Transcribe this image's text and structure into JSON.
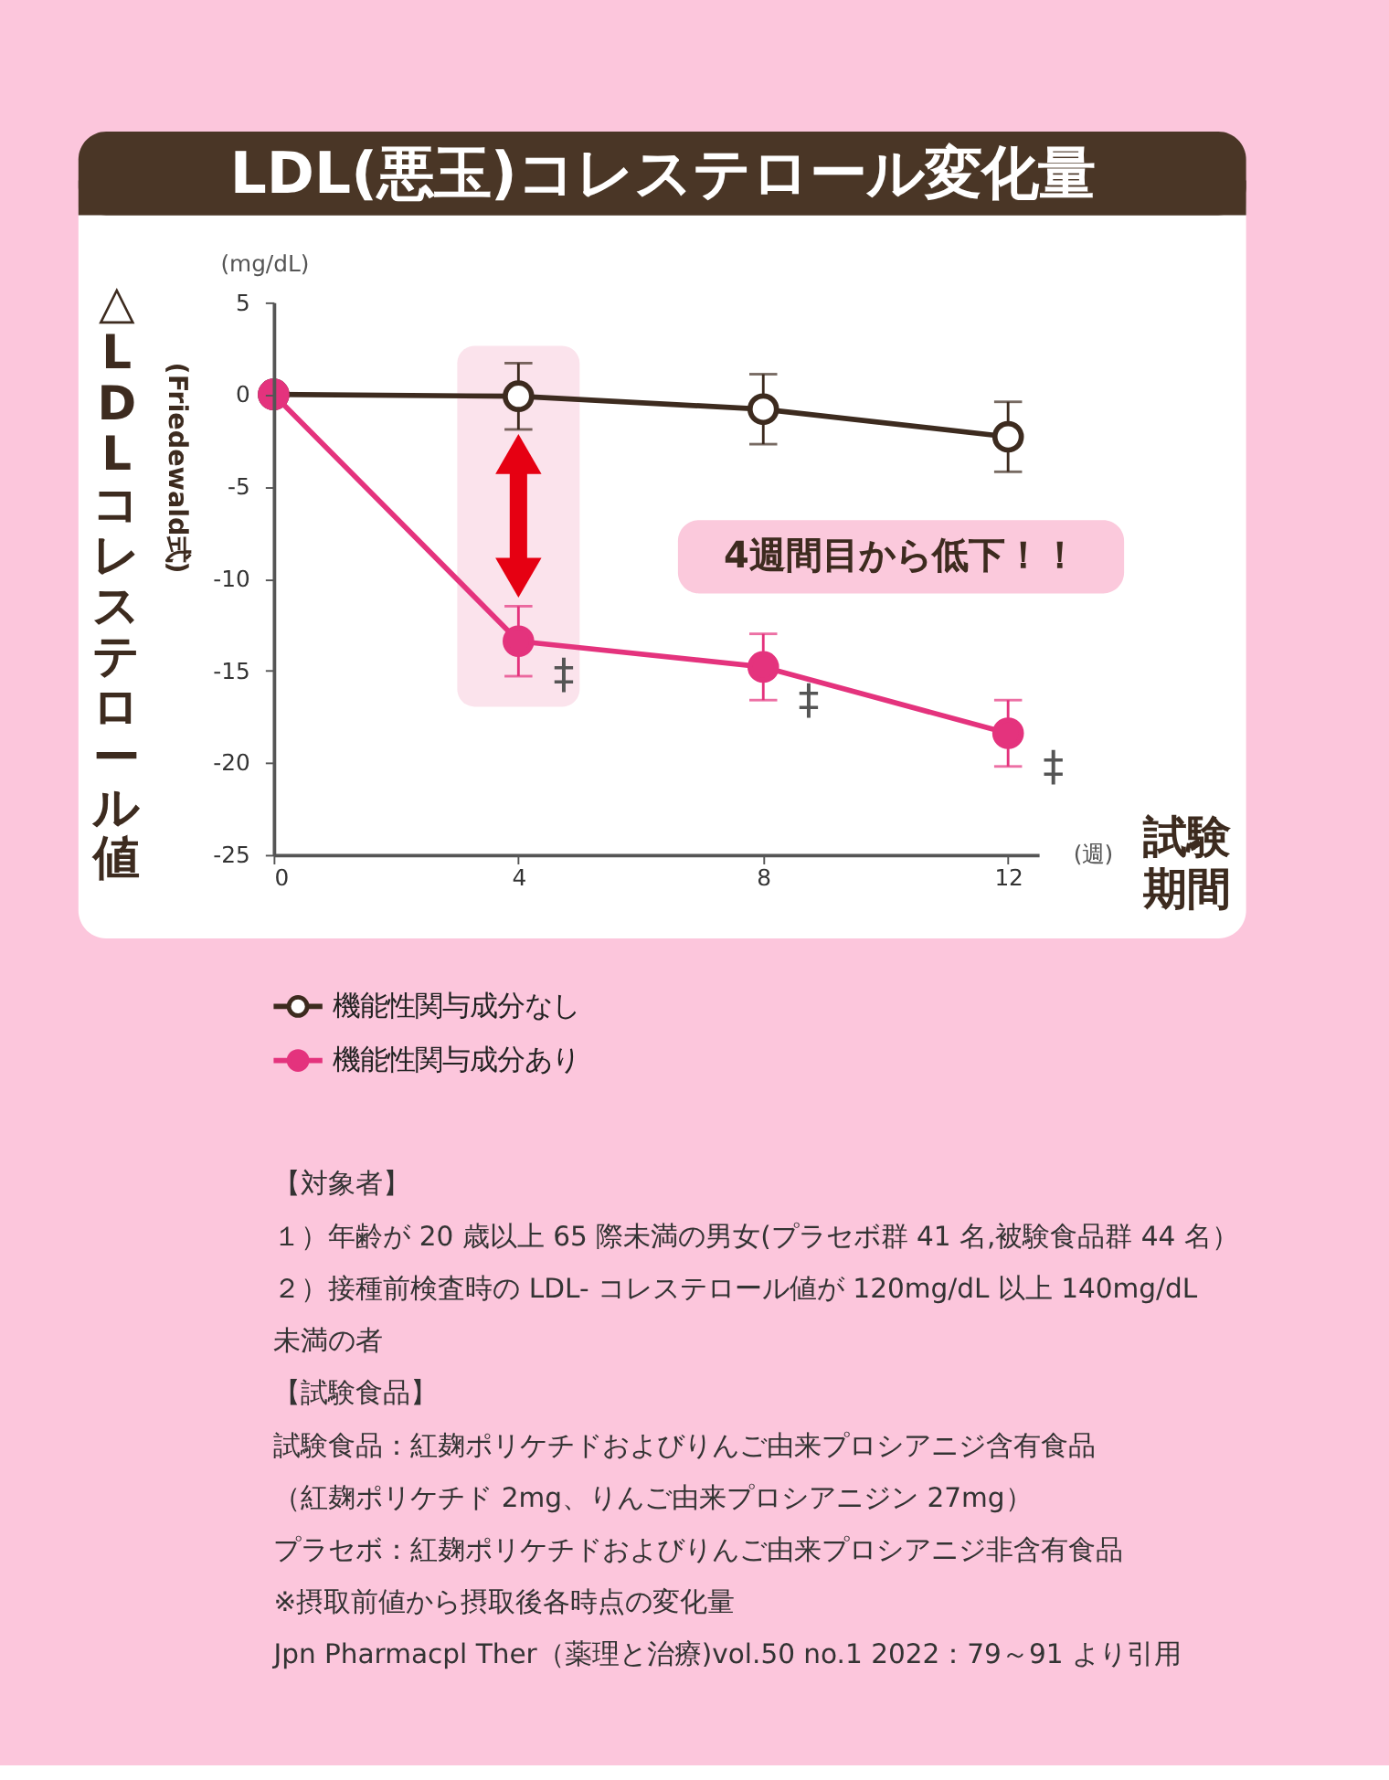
{
  "chart_data": {
    "type": "line",
    "title": "LDL(悪玉)コレステロール変化量",
    "ylabel": "△LDLコレステロール値",
    "xlabel": "試験期間",
    "x": [
      0,
      4,
      8,
      12
    ],
    "xlim": [
      0,
      12.5
    ],
    "xticks": [
      0,
      4,
      8,
      12
    ],
    "ylim": [
      -25,
      5
    ],
    "yticks": [
      5,
      0,
      -5,
      -10,
      -15,
      -20,
      -25
    ],
    "marker": "circle",
    "line_style": "solid",
    "legend": "bottom",
    "grid": false,
    "series": [
      {
        "name": "機能性関与成分なし",
        "color": "#3d2b1f",
        "values": [
          0,
          -0.1,
          -0.8,
          -2.3
        ],
        "errors": [
          null,
          1.8,
          1.9,
          1.9
        ]
      },
      {
        "name": "機能性関与成分あり",
        "color": "#e4337d",
        "values": [
          0,
          -13.4,
          -14.8,
          -18.4
        ],
        "errors": [
          null,
          1.9,
          1.8,
          1.8
        ]
      }
    ],
    "bands": [
      {
        "axis": "x",
        "from": 3.0,
        "to": 5.0,
        "color": "#fbe3ec"
      }
    ],
    "annotations": [
      "(mg/dL)",
      "(週)",
      "(Friedewald式)",
      "4週間目から低下！！",
      {
        "text": "‡",
        "x": 4,
        "y": -13.4
      },
      {
        "text": "‡",
        "x": 8,
        "y": -14.8
      },
      {
        "text": "‡",
        "x": 12,
        "y": -18.4
      },
      "【対象者】",
      "１）年齢が 20 歳以上 65 際未満の男女(プラセボ群 41 名,被験食品群 44 名）",
      "２）接種前検査時の LDL- コレステロール値が 120mg/dL 以上 140mg/dL",
      "未満の者",
      "【試験食品】",
      "試験食品：紅麹ポリケチドおよびりんご由来プロシアニジ含有食品",
      "（紅麹ポリケチド 2mg、りんご由来プロシアニジン 27mg）",
      "プラセボ：紅麹ポリケチドおよびりんご由来プロシアニジ非含有食品",
      "※摂取前値から摂取後各時点の変化量",
      "Jpn Pharmacpl Ther（薬理と治療)vol.50 no.1 2022：79～91 より引用"
    ]
  }
}
